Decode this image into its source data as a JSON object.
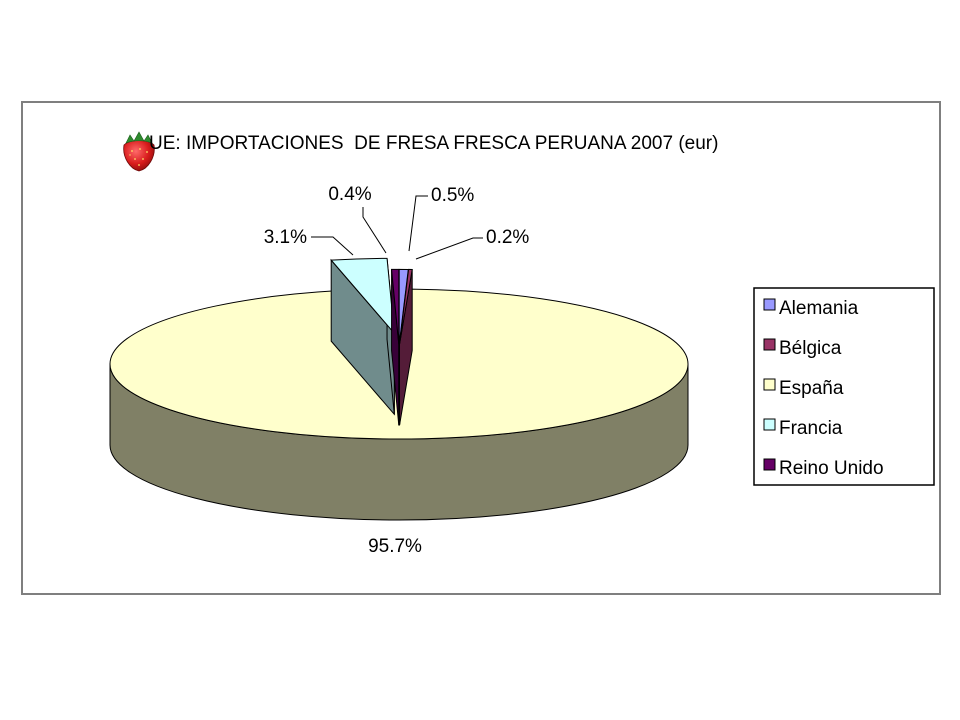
{
  "chart_data": {
    "type": "pie",
    "title": "UE: IMPORTACIONES  DE FRESA FRESCA PERUANA 2007 (eur)",
    "slices": [
      {
        "name": "Alemania",
        "value": 0.5,
        "label": "0.5%",
        "color": "#9999ff"
      },
      {
        "name": "Bélgica",
        "value": 0.2,
        "label": "0.2%",
        "color": "#993366"
      },
      {
        "name": "España",
        "value": 95.7,
        "label": "95.7%",
        "color": "#ffffcc"
      },
      {
        "name": "Francia",
        "value": 3.1,
        "label": "3.1%",
        "color": "#ccffff"
      },
      {
        "name": "Reino Unido",
        "value": 0.4,
        "label": "0.4%",
        "color": "#660066"
      }
    ],
    "legend": {
      "position": "right",
      "items": [
        "Alemania",
        "Bélgica",
        "España",
        "Francia",
        "Reino Unido"
      ]
    },
    "style": "3d-exploded",
    "icon": "strawberry-icon"
  }
}
